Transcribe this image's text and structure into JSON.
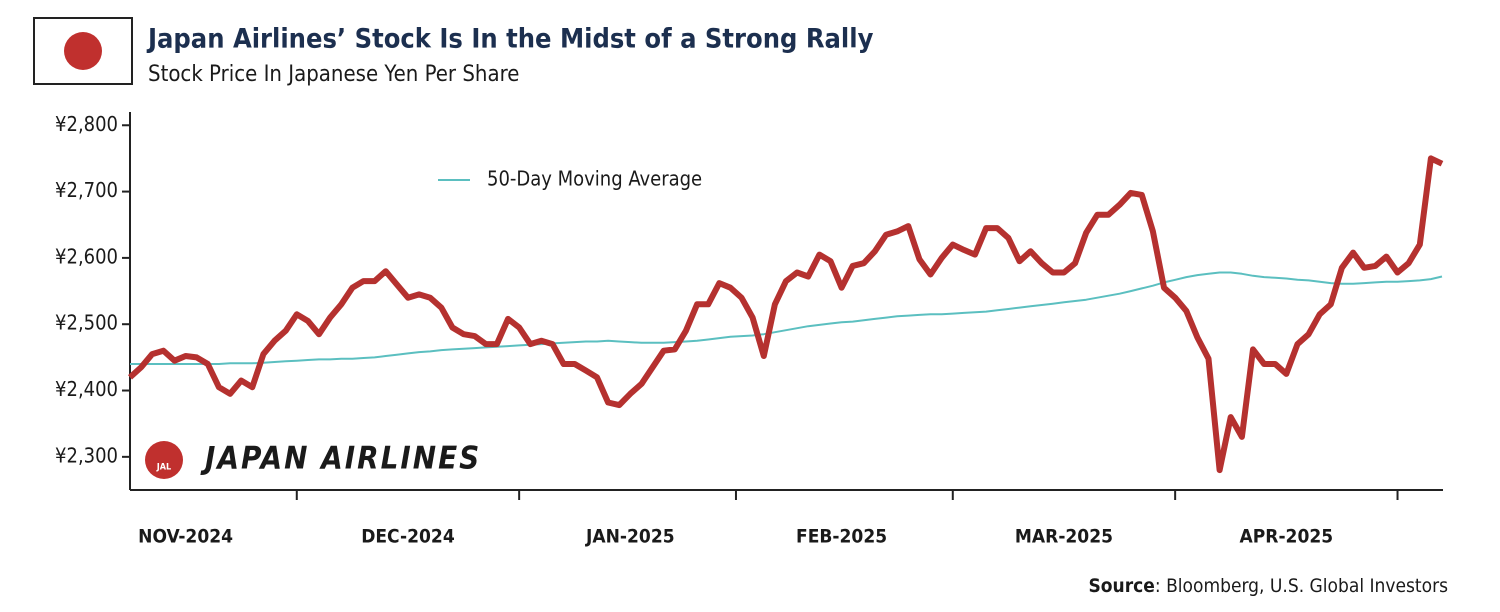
{
  "chart_data": {
    "type": "line",
    "title": "Japan Airlines’ Stock Is In the Midst of a Strong Rally",
    "subtitle": "Stock Price In Japanese Yen Per Share",
    "logo_text": "JAPAN AIRLINES",
    "logo_badge": "JAL",
    "source_label": "Source",
    "source_text": ": Bloomberg, U.S. Global Investors",
    "categories": [
      null,
      null,
      null,
      null,
      null,
      "NOV-2024",
      null,
      null,
      null,
      null,
      null,
      null,
      null,
      null,
      null,
      null,
      null,
      null,
      null,
      null,
      null,
      null,
      null,
      null,
      null,
      "DEC-2024",
      null,
      null,
      null,
      null,
      null,
      null,
      null,
      null,
      null,
      null,
      null,
      null,
      null,
      null,
      null,
      null,
      null,
      null,
      null,
      "JAN-2025",
      null,
      null,
      null,
      null,
      null,
      null,
      null,
      null,
      null,
      null,
      null,
      null,
      null,
      null,
      null,
      null,
      null,
      null,
      "FEB-2025",
      null,
      null,
      null,
      null,
      null,
      null,
      null,
      null,
      null,
      null,
      null,
      null,
      null,
      null,
      null,
      null,
      null,
      null,
      null,
      "MAR-2025",
      null,
      null,
      null,
      null,
      null,
      null,
      null,
      null,
      null,
      null,
      null,
      null,
      null,
      null,
      null,
      null,
      null,
      null,
      null,
      "APR-2025",
      null,
      null,
      null,
      null,
      null,
      null,
      null,
      null,
      null,
      null,
      null,
      null,
      null,
      null
    ],
    "series": [
      {
        "color": "#b5312f",
        "values": [
          2420,
          2435,
          2455,
          2460,
          2445,
          2452,
          2450,
          2440,
          2405,
          2395,
          2415,
          2405,
          2455,
          2475,
          2490,
          2515,
          2505,
          2485,
          2510,
          2530,
          2555,
          2565,
          2565,
          2580,
          2560,
          2540,
          2545,
          2540,
          2525,
          2495,
          2485,
          2482,
          2470,
          2470,
          2508,
          2495,
          2470,
          2475,
          2470,
          2440,
          2440,
          2430,
          2420,
          2382,
          2378,
          2395,
          2410,
          2435,
          2460,
          2462,
          2490,
          2530,
          2530,
          2562,
          2555,
          2540,
          2510,
          2452,
          2530,
          2565,
          2578,
          2572,
          2605,
          2595,
          2555,
          2588,
          2592,
          2610,
          2635,
          2640,
          2648,
          2598,
          2575,
          2600,
          2620,
          2612,
          2605,
          2645,
          2645,
          2630,
          2595,
          2610,
          2592,
          2578,
          2578,
          2592,
          2638,
          2665,
          2665,
          2680,
          2698,
          2695,
          2640,
          2555,
          2540,
          2520,
          2480,
          2448,
          2280,
          2360,
          2330,
          2462,
          2440,
          2440,
          2425,
          2470,
          2485,
          2515,
          2530,
          2585,
          2608,
          2585,
          2588,
          2602,
          2578,
          2592,
          2620,
          2750,
          2742
        ]
      },
      {
        "name": "50-Day Moving Average",
        "color": "#5bbfc0",
        "values": [
          2440,
          2440,
          2440,
          2440,
          2440,
          2440,
          2440,
          2440,
          2440,
          2441,
          2441,
          2441,
          2442,
          2443,
          2444,
          2445,
          2446,
          2447,
          2447,
          2448,
          2448,
          2449,
          2450,
          2452,
          2454,
          2456,
          2458,
          2459,
          2461,
          2462,
          2463,
          2464,
          2465,
          2466,
          2467,
          2468,
          2469,
          2470,
          2471,
          2472,
          2473,
          2474,
          2474,
          2475,
          2474,
          2473,
          2472,
          2472,
          2472,
          2473,
          2474,
          2475,
          2477,
          2479,
          2481,
          2482,
          2483,
          2485,
          2488,
          2491,
          2494,
          2497,
          2499,
          2501,
          2503,
          2504,
          2506,
          2508,
          2510,
          2512,
          2513,
          2514,
          2515,
          2515,
          2516,
          2517,
          2518,
          2519,
          2521,
          2523,
          2525,
          2527,
          2529,
          2531,
          2533,
          2535,
          2537,
          2540,
          2543,
          2546,
          2550,
          2554,
          2558,
          2563,
          2567,
          2571,
          2574,
          2576,
          2578,
          2578,
          2576,
          2573,
          2571,
          2570,
          2569,
          2567,
          2566,
          2564,
          2562,
          2561,
          2561,
          2562,
          2563,
          2564,
          2564,
          2565,
          2566,
          2568,
          2572
        ]
      }
    ],
    "ylim": [
      2250,
      2820
    ],
    "yticks": [
      {
        "value": 2300,
        "label": "¥2,300"
      },
      {
        "value": 2400,
        "label": "¥2,400"
      },
      {
        "value": 2500,
        "label": "¥2,500"
      },
      {
        "value": 2600,
        "label": "¥2,600"
      },
      {
        "value": 2700,
        "label": "¥2,700"
      },
      {
        "value": 2800,
        "label": "¥2,800"
      }
    ],
    "grid": false,
    "legend": "top-left"
  }
}
